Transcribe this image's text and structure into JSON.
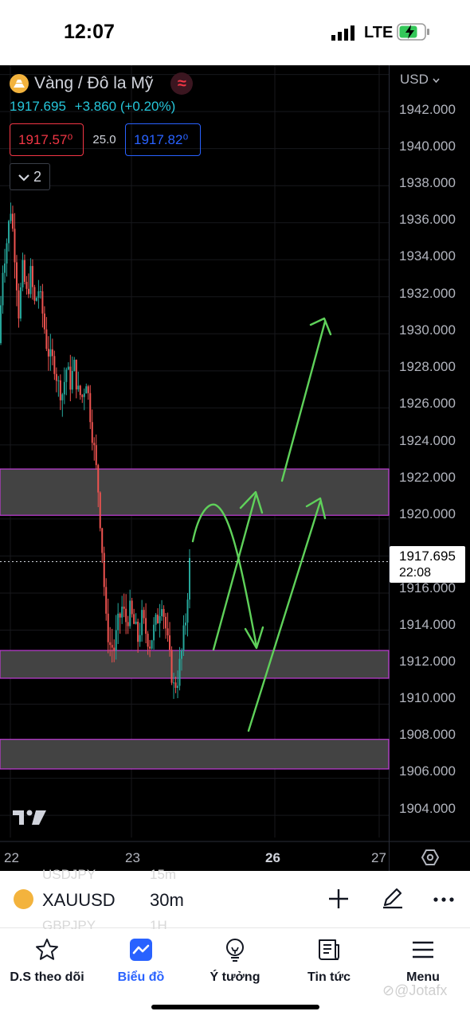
{
  "status_bar": {
    "time": "12:07",
    "network": "LTE",
    "icons": [
      "signal-icon",
      "battery-charging-icon"
    ]
  },
  "chart_header": {
    "symbol_name": "Vàng / Đô la Mỹ",
    "realtime_badge": "≈",
    "last_price": "1917.695",
    "change": "+3.860 (+0.20%)",
    "bid": "1917.57⁰",
    "spread": "25.0",
    "ask": "1917.82⁰",
    "indicators_toggle": "2",
    "currency": "USD"
  },
  "price_axis": {
    "labels": [
      "1942.000",
      "1940.000",
      "1938.000",
      "1936.000",
      "1934.000",
      "1932.000",
      "1930.000",
      "1928.000",
      "1926.000",
      "1924.000",
      "1922.000",
      "1920.000",
      "1916.000",
      "1914.000",
      "1912.000",
      "1910.000",
      "1908.000",
      "1906.000",
      "1904.000"
    ],
    "last_price": "1917.695",
    "countdown": "22:08"
  },
  "time_axis": {
    "labels": [
      "22",
      "23",
      "26",
      "27"
    ],
    "highlighted": "26"
  },
  "colors": {
    "up": "#26a69a",
    "down": "#ef5350",
    "zone_fill": "#434343",
    "zone_border": "#c03bd6",
    "arrow": "#5fd15a",
    "accent": "#2962ff"
  },
  "chart_data": {
    "type": "candlestick",
    "symbol": "XAUUSD",
    "interval": "30m",
    "ylim": [
      1902.8,
      1944.5
    ],
    "x_ticks": [
      "22",
      "23",
      "26",
      "27"
    ],
    "price_path": [
      1929.5,
      1933.6,
      1935.0,
      1936.8,
      1934.4,
      1931.2,
      1933.4,
      1932.1,
      1933.2,
      1931.6,
      1932.4,
      1931.1,
      1929.5,
      1928.6,
      1928.4,
      1927.2,
      1926.8,
      1928.1,
      1927.4,
      1928.2,
      1926.8,
      1926.6,
      1927.6,
      1925.7,
      1923.7,
      1921.6,
      1918.4,
      1914.4,
      1913.2,
      1913.0,
      1914.3,
      1915.2,
      1914.5,
      1915.0,
      1914.3,
      1913.5,
      1914.6,
      1913.9,
      1913.3,
      1914.0,
      1914.7,
      1915.7,
      1914.1,
      1912.4,
      1910.9,
      1911.4,
      1912.8,
      1914.6,
      1917.6
    ],
    "zones": [
      {
        "low": 1920.2,
        "high": 1922.7
      },
      {
        "low": 1911.4,
        "high": 1912.9
      },
      {
        "low": 1906.5,
        "high": 1908.1
      }
    ],
    "last_price": 1917.695
  },
  "symbol_bar": {
    "ticker": "XAUUSD",
    "interval": "30m",
    "ghost_ticker_above": "USDJPY",
    "ghost_interval_above": "15m",
    "ghost_ticker_below": "GBPJPY",
    "ghost_interval_below": "1H"
  },
  "bottom_nav": {
    "items": [
      {
        "label": "D.S theo dõi",
        "icon": "star-icon"
      },
      {
        "label": "Biểu đồ",
        "icon": "chart-icon"
      },
      {
        "label": "Ý tưởng",
        "icon": "lightbulb-icon"
      },
      {
        "label": "Tin tức",
        "icon": "news-icon"
      },
      {
        "label": "Menu",
        "icon": "menu-icon"
      }
    ],
    "active": "Biểu đồ"
  },
  "watermark": "Jotafx"
}
